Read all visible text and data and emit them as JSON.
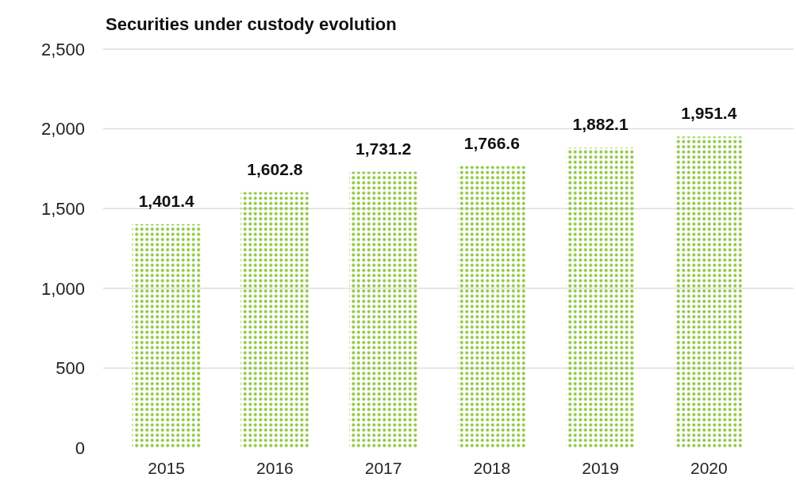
{
  "chart_data": {
    "type": "bar",
    "title": "Securities under custody evolution",
    "categories": [
      "2015",
      "2016",
      "2017",
      "2018",
      "2019",
      "2020"
    ],
    "values": [
      1401.4,
      1602.8,
      1731.2,
      1766.6,
      1882.1,
      1951.4
    ],
    "value_labels": [
      "1,401.4",
      "1,602.8",
      "1,731.2",
      "1,766.6",
      "1,882.1",
      "1,951.4"
    ],
    "color": "#8dc63f",
    "ylim": [
      0,
      2500
    ],
    "yticks": [
      {
        "value": 0,
        "label": "0"
      },
      {
        "value": 500,
        "label": "500"
      },
      {
        "value": 1000,
        "label": "1,000"
      },
      {
        "value": 1500,
        "label": "1,500"
      },
      {
        "value": 2000,
        "label": "2,000"
      },
      {
        "value": 2500,
        "label": "2,500"
      }
    ],
    "grid": "y"
  }
}
